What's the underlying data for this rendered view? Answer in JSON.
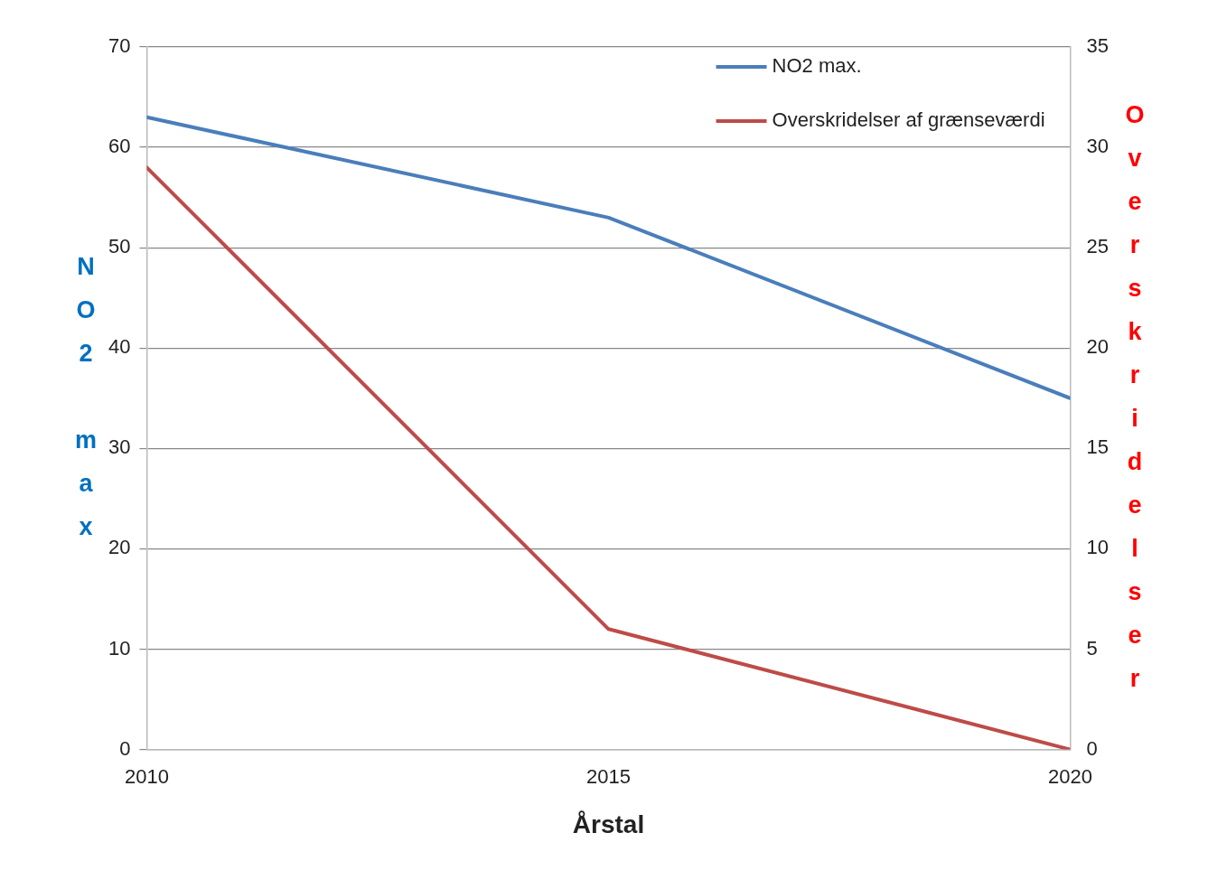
{
  "chart_data": {
    "type": "line",
    "xlabel": "Årstal",
    "ylabel": "NO2 max",
    "y2label": "Overskridelser",
    "x": [
      2010,
      2015,
      2020
    ],
    "series": [
      {
        "name": "NO2 max.",
        "color": "#4a7ebb",
        "values": [
          63,
          53,
          35
        ]
      },
      {
        "name": "Overskridelser af grænseværdi",
        "color": "#be4b48",
        "values": [
          29,
          6,
          0
        ],
        "axis": "y2"
      }
    ],
    "xlim": [
      2010,
      2020
    ],
    "xticks": [
      2010,
      2015,
      2020
    ],
    "ylim": [
      0,
      70
    ],
    "yticks": [
      0,
      10,
      20,
      30,
      40,
      50,
      60,
      70
    ],
    "y2lim": [
      0,
      35
    ],
    "y2ticks": [
      0,
      5,
      10,
      15,
      20,
      25,
      30,
      35
    ],
    "grid": "y",
    "legend": "top right",
    "marker": "none",
    "line_style": "solid"
  }
}
